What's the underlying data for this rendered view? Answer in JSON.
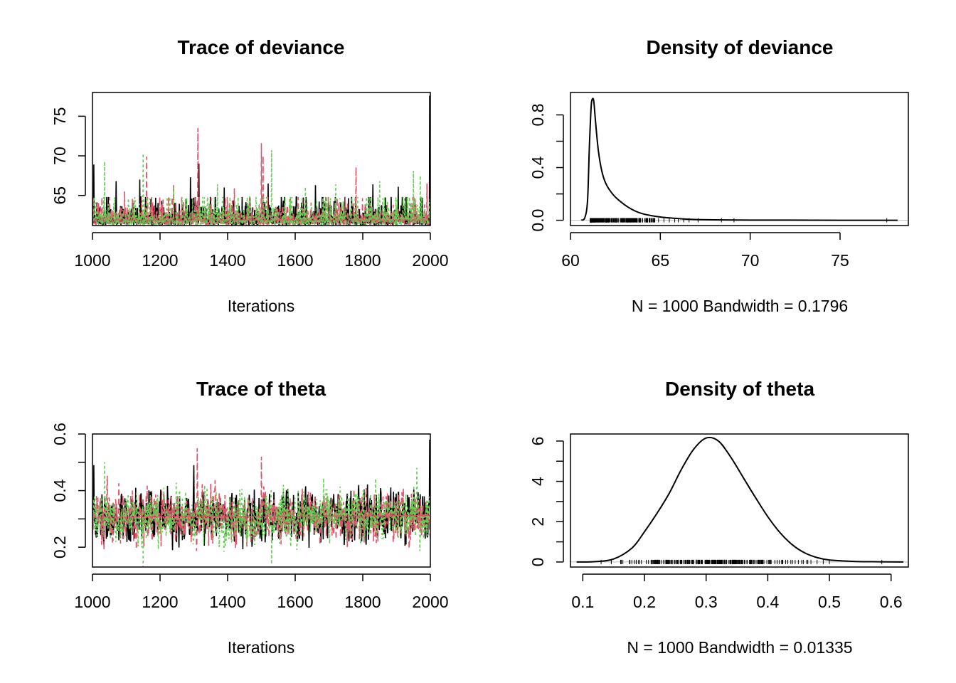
{
  "figure": {
    "colors": {
      "chain1": "#000000",
      "chain2": "#DF536B",
      "chain3": "#61D04F",
      "box": "#000000",
      "density": "#000000",
      "refline": "#BEBEBE"
    }
  },
  "chart_data": [
    {
      "id": "trace-deviance",
      "type": "line",
      "title": "Trace of deviance",
      "xlabel": "Iterations",
      "ylabel": "",
      "xlim": [
        1000,
        2000
      ],
      "ylim": [
        61.2,
        78.0
      ],
      "x_ticks": [
        1000,
        1200,
        1400,
        1600,
        1800,
        2000
      ],
      "x_tick_labels": [
        "1000",
        "1200",
        "1400",
        "1600",
        "1800",
        "2000"
      ],
      "y_ticks": [
        65,
        70,
        75
      ],
      "y_tick_labels": [
        "65",
        "70",
        "75"
      ],
      "series": [
        {
          "chain": 1,
          "color": "#000000",
          "dash": "",
          "peaks": [
            [
              1004,
              68.9
            ],
            [
              1070,
              66.8
            ],
            [
              1140,
              67.0
            ],
            [
              1290,
              67.3
            ],
            [
              1315,
              69.0
            ],
            [
              1390,
              66.0
            ],
            [
              1520,
              66.5
            ],
            [
              1660,
              66.3
            ],
            [
              1830,
              66.4
            ],
            [
              1905,
              66.1
            ],
            [
              1998,
              77.6
            ]
          ]
        },
        {
          "chain": 2,
          "color": "#DF536B",
          "dash": "8,5",
          "peaks": [
            [
              1095,
              65.5
            ],
            [
              1160,
              69.9
            ],
            [
              1240,
              66.5
            ],
            [
              1312,
              73.5
            ],
            [
              1420,
              65.9
            ],
            [
              1500,
              71.6
            ],
            [
              1505,
              70.0
            ],
            [
              1780,
              68.6
            ],
            [
              1990,
              66.5
            ]
          ]
        },
        {
          "chain": 3,
          "color": "#61D04F",
          "dash": "3,4",
          "peaks": [
            [
              1036,
              69.3
            ],
            [
              1150,
              70.3
            ],
            [
              1240,
              66.0
            ],
            [
              1370,
              66.4
            ],
            [
              1530,
              70.7
            ],
            [
              1630,
              66.1
            ],
            [
              1720,
              66.4
            ],
            [
              1850,
              66.8
            ],
            [
              1950,
              68.1
            ],
            [
              1970,
              67.5
            ]
          ]
        }
      ],
      "trend": {
        "color": "#000000",
        "y_start": 61.9,
        "y_end": 61.9
      }
    },
    {
      "id": "density-deviance",
      "type": "line",
      "title": "Density of deviance",
      "xlabel": "N = 1000   Bandwidth = 0.1796",
      "ylabel": "",
      "xlim": [
        60.0,
        78.8
      ],
      "ylim": [
        -0.04,
        0.97
      ],
      "x_ticks": [
        60,
        65,
        70,
        75
      ],
      "x_tick_labels": [
        "60",
        "65",
        "70",
        "75"
      ],
      "y_ticks": [
        0.0,
        0.2,
        0.4,
        0.6,
        0.8
      ],
      "y_tick_labels": [
        "0.0",
        "",
        "0.4",
        "",
        "0.8"
      ],
      "density_curve": [
        [
          60.6,
          0.0
        ],
        [
          60.8,
          0.02
        ],
        [
          60.95,
          0.15
        ],
        [
          61.05,
          0.55
        ],
        [
          61.15,
          0.86
        ],
        [
          61.22,
          0.92
        ],
        [
          61.3,
          0.9
        ],
        [
          61.4,
          0.74
        ],
        [
          61.55,
          0.53
        ],
        [
          61.75,
          0.37
        ],
        [
          62.0,
          0.27
        ],
        [
          62.4,
          0.19
        ],
        [
          62.8,
          0.14
        ],
        [
          63.2,
          0.1
        ],
        [
          63.6,
          0.07
        ],
        [
          64.0,
          0.05
        ],
        [
          64.5,
          0.035
        ],
        [
          65.0,
          0.025
        ],
        [
          65.5,
          0.018
        ],
        [
          66.0,
          0.013
        ],
        [
          66.5,
          0.008
        ],
        [
          67.0,
          0.005
        ],
        [
          68.0,
          0.003
        ],
        [
          69.0,
          0.002
        ],
        [
          70.0,
          0.001
        ],
        [
          72.0,
          0.001
        ],
        [
          75.0,
          0.0
        ],
        [
          77.6,
          0.0
        ],
        [
          78.2,
          0.0
        ]
      ],
      "rug": {
        "dense_range": [
          61.1,
          64.7
        ],
        "sparse": [
          64.9,
          65.2,
          65.5,
          65.8,
          66.0,
          66.3,
          66.6,
          67.1,
          68.4,
          69.1,
          77.6
        ]
      }
    },
    {
      "id": "trace-theta",
      "type": "line",
      "title": "Trace of theta",
      "xlabel": "Iterations",
      "ylabel": "",
      "xlim": [
        1000,
        2000
      ],
      "ylim": [
        0.13,
        0.6
      ],
      "x_ticks": [
        1000,
        1200,
        1400,
        1600,
        1800,
        2000
      ],
      "x_tick_labels": [
        "1000",
        "1200",
        "1400",
        "1600",
        "1800",
        "2000"
      ],
      "y_ticks": [
        0.2,
        0.3,
        0.4,
        0.5,
        0.6
      ],
      "y_tick_labels": [
        "0.2",
        "",
        "0.4",
        "",
        "0.6"
      ],
      "series": [
        {
          "chain": 1,
          "color": "#000000",
          "dash": "",
          "range": [
            0.17,
            0.49
          ],
          "peaks": [
            [
              1004,
              0.49
            ],
            [
              1300,
              0.49
            ],
            [
              1998,
              0.58
            ]
          ]
        },
        {
          "chain": 2,
          "color": "#DF536B",
          "dash": "8,5",
          "range": [
            0.16,
            0.46
          ],
          "peaks": [
            [
              1310,
              0.55
            ],
            [
              1500,
              0.52
            ]
          ]
        },
        {
          "chain": 3,
          "color": "#61D04F",
          "dash": "3,4",
          "range": [
            0.15,
            0.47
          ],
          "peaks": [
            [
              1036,
              0.5
            ],
            [
              1150,
              0.13
            ],
            [
              1530,
              0.14
            ],
            [
              1960,
              0.48
            ]
          ]
        }
      ],
      "trend": {
        "color": "#000000",
        "y_start": 0.306,
        "y_end": 0.312
      }
    },
    {
      "id": "density-theta",
      "type": "line",
      "title": "Density of theta",
      "xlabel": "N = 1000   Bandwidth = 0.01335",
      "ylabel": "",
      "xlim": [
        0.08,
        0.628
      ],
      "ylim": [
        -0.25,
        6.35
      ],
      "x_ticks": [
        0.1,
        0.2,
        0.3,
        0.4,
        0.5,
        0.6
      ],
      "x_tick_labels": [
        "0.1",
        "0.2",
        "0.3",
        "0.4",
        "0.5",
        "0.6"
      ],
      "y_ticks": [
        0,
        1,
        2,
        3,
        4,
        5,
        6
      ],
      "y_tick_labels": [
        "0",
        "",
        "2",
        "",
        "4",
        "",
        "6"
      ],
      "density_curve": [
        [
          0.09,
          0.0
        ],
        [
          0.12,
          0.02
        ],
        [
          0.15,
          0.15
        ],
        [
          0.18,
          0.7
        ],
        [
          0.2,
          1.5
        ],
        [
          0.22,
          2.4
        ],
        [
          0.24,
          3.4
        ],
        [
          0.26,
          4.6
        ],
        [
          0.28,
          5.6
        ],
        [
          0.3,
          6.15
        ],
        [
          0.32,
          6.0
        ],
        [
          0.34,
          5.2
        ],
        [
          0.36,
          4.2
        ],
        [
          0.38,
          3.2
        ],
        [
          0.4,
          2.25
        ],
        [
          0.42,
          1.45
        ],
        [
          0.44,
          0.85
        ],
        [
          0.46,
          0.45
        ],
        [
          0.48,
          0.22
        ],
        [
          0.5,
          0.1
        ],
        [
          0.54,
          0.03
        ],
        [
          0.58,
          0.01
        ],
        [
          0.62,
          0.0
        ]
      ],
      "rug": {
        "dense_range": [
          0.17,
          0.45
        ],
        "sparse": [
          0.165,
          0.455,
          0.465,
          0.47,
          0.48,
          0.49,
          0.5,
          0.585
        ]
      }
    }
  ]
}
